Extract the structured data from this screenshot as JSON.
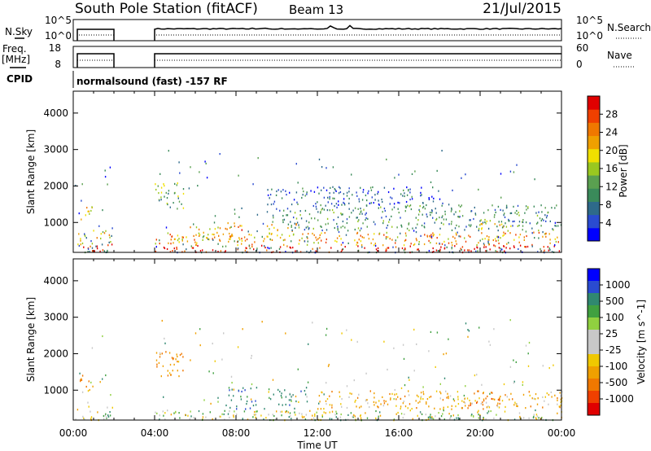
{
  "header": {
    "title": "South Pole Station (fitACF)",
    "beam": "Beam 13",
    "date": "21/Jul/2015"
  },
  "top_panels": {
    "nsky_label": "N.Sky",
    "nsky_ticks": [
      "10^5",
      "10^0"
    ],
    "nsearch_label": "N.Search",
    "nsearch_ticks": [
      "10^5",
      "10^0"
    ],
    "freq_label": "Freq.",
    "freq_unit": "[MHz]",
    "freq_ticks": [
      "18",
      "8"
    ],
    "nave_label": "Nave",
    "nave_ticks": [
      "60",
      "0"
    ],
    "cpid_label": "CPID",
    "cpid_text": "normalsound (fast) -157 RF",
    "data_gap_hours": [
      2.0,
      4.0
    ]
  },
  "chart_data": [
    {
      "type": "heatmap",
      "name": "power",
      "ylabel": "Slant Range [km]",
      "ylim": [
        180,
        4600
      ],
      "yticks": [
        1000,
        2000,
        3000,
        4000
      ],
      "xlim": [
        0,
        24
      ],
      "colorbar_label": "Power [dB]",
      "colorbar_ticks": [
        "28",
        "24",
        "20",
        "16",
        "12",
        "8",
        "4"
      ],
      "colorbar_values": [
        28,
        24,
        20,
        16,
        12,
        8,
        4
      ],
      "colorbar_range": [
        0,
        32
      ],
      "colorbar_colors": [
        "#0000ff",
        "#2a4bd0",
        "#2e6a8a",
        "#3a8a5a",
        "#5aa050",
        "#9ac820",
        "#f0e000",
        "#f0a000",
        "#f07800",
        "#f04000",
        "#e00000"
      ],
      "regions": [
        {
          "t": [
            0.2,
            1.9
          ],
          "r": [
            200,
            420
          ],
          "level": 30
        },
        {
          "t": [
            0.2,
            1.9
          ],
          "r": [
            420,
            800
          ],
          "level": 20
        },
        {
          "t": [
            0.3,
            1.0
          ],
          "r": [
            1000,
            1450
          ],
          "level": 18
        },
        {
          "t": [
            4.0,
            24.0
          ],
          "r": [
            200,
            400
          ],
          "level": 30
        },
        {
          "t": [
            4.0,
            24.0
          ],
          "r": [
            400,
            750
          ],
          "level": 22
        },
        {
          "t": [
            4.0,
            5.5
          ],
          "r": [
            1400,
            2100
          ],
          "level": 14
        },
        {
          "t": [
            5.5,
            7.5
          ],
          "r": [
            600,
            900
          ],
          "level": 20
        },
        {
          "t": [
            7.5,
            8.5
          ],
          "r": [
            500,
            1100
          ],
          "level": 24
        },
        {
          "t": [
            9.5,
            11.0
          ],
          "r": [
            600,
            1000
          ],
          "level": 20
        },
        {
          "t": [
            10.0,
            24.0
          ],
          "r": [
            800,
            1500
          ],
          "level": 10
        },
        {
          "t": [
            9.5,
            18.0
          ],
          "r": [
            1500,
            2000
          ],
          "level": 6
        },
        {
          "t": [
            20.0,
            21.5
          ],
          "r": [
            500,
            1100
          ],
          "level": 20
        }
      ]
    },
    {
      "type": "heatmap",
      "name": "velocity",
      "ylabel": "Slant Range [km]",
      "ylim": [
        180,
        4600
      ],
      "yticks": [
        1000,
        2000,
        3000,
        4000
      ],
      "xlim": [
        0,
        24
      ],
      "xticks": [
        "00:00",
        "04:00",
        "08:00",
        "12:00",
        "16:00",
        "20:00",
        "00:00"
      ],
      "xtick_hours": [
        0,
        4,
        8,
        12,
        16,
        20,
        24
      ],
      "xlabel": "Time UT",
      "colorbar_label": "Velocity [m s^-1]",
      "colorbar_ticks": [
        "1000",
        "500",
        "100",
        "25",
        "-25",
        "-100",
        "-500",
        "-1000"
      ],
      "colorbar_colors": [
        "#e00000",
        "#f04000",
        "#f07800",
        "#f0a000",
        "#f0c800",
        "#c8c8c8",
        "#c8c8c8",
        "#90d040",
        "#40a040",
        "#308870",
        "#2a4bd0",
        "#0000ff"
      ],
      "regions": [
        {
          "t": [
            0.2,
            1.9
          ],
          "r": [
            200,
            450
          ],
          "value": 0
        },
        {
          "t": [
            0.3,
            1.0
          ],
          "r": [
            1000,
            1450
          ],
          "value": -300
        },
        {
          "t": [
            4.0,
            24.0
          ],
          "r": [
            200,
            450
          ],
          "value": 0
        },
        {
          "t": [
            4.0,
            5.5
          ],
          "r": [
            1400,
            2100
          ],
          "value": -300
        },
        {
          "t": [
            7.5,
            9.0
          ],
          "r": [
            500,
            1100
          ],
          "value": 200
        },
        {
          "t": [
            9.5,
            11.5
          ],
          "r": [
            600,
            1100
          ],
          "value": 150
        },
        {
          "t": [
            12.0,
            24.0
          ],
          "r": [
            500,
            1000
          ],
          "value": -150
        },
        {
          "t": [
            19.5,
            21.0
          ],
          "r": [
            600,
            1000
          ],
          "value": -400
        }
      ]
    }
  ]
}
